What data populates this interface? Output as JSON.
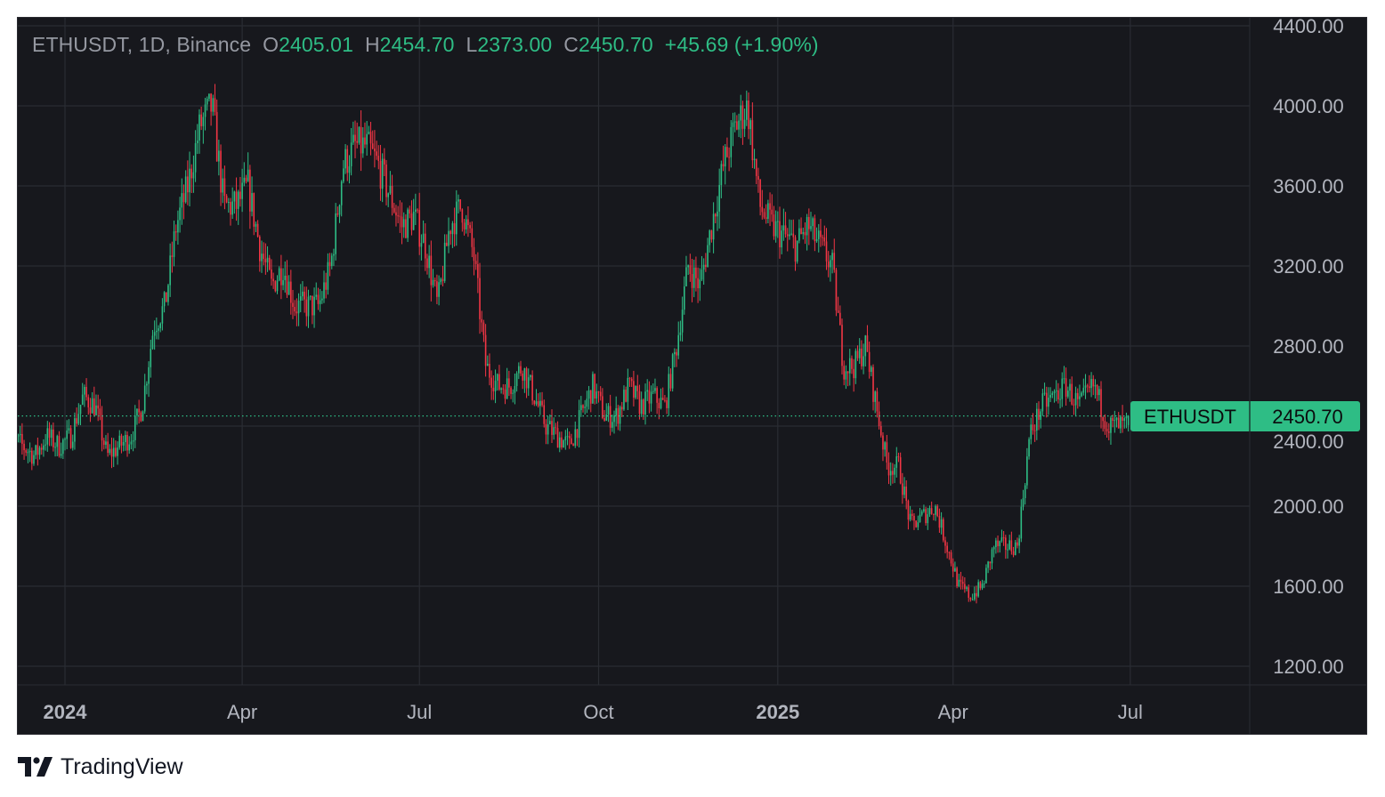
{
  "legend": {
    "symbol_info": "ETHUSDT, 1D, Binance",
    "open_label": "O",
    "open": "2405.01",
    "high_label": "H",
    "high": "2454.70",
    "low_label": "L",
    "low": "2373.00",
    "close_label": "C",
    "close": "2450.70",
    "change": "+45.69",
    "change_pct": "(+1.90%)"
  },
  "price_label": {
    "symbol": "ETHUSDT",
    "price": "2450.70"
  },
  "brand": {
    "name": "TradingView"
  },
  "colors": {
    "background": "#17181d",
    "up": "#2ebd85",
    "down": "#f23645",
    "grid": "#2a2c33",
    "axis_text": "#b2b5be"
  },
  "chart_data": {
    "type": "candlestick",
    "symbol": "ETHUSDT",
    "interval": "1D",
    "exchange": "Binance",
    "ylim": [
      1200,
      4400
    ],
    "y_ticks": [
      "1200.00",
      "1600.00",
      "2000.00",
      "2400.00",
      "2800.00",
      "3200.00",
      "3600.00",
      "4000.00",
      "4400.00"
    ],
    "x_ticks": [
      {
        "date": "2024-01-01",
        "label": "2024",
        "bold": true
      },
      {
        "date": "2024-04-01",
        "label": "Apr",
        "bold": false
      },
      {
        "date": "2024-07-01",
        "label": "Jul",
        "bold": false
      },
      {
        "date": "2024-10-01",
        "label": "Oct",
        "bold": false
      },
      {
        "date": "2025-01-01",
        "label": "2025",
        "bold": true
      },
      {
        "date": "2025-04-01",
        "label": "Apr",
        "bold": false
      },
      {
        "date": "2025-07-01",
        "label": "Jul",
        "bold": false
      }
    ],
    "grid": true,
    "approx_closes_by_month": {
      "2023-12": [
        2350,
        2300,
        2250,
        2350,
        2300
      ],
      "2024-01": [
        2350,
        2550,
        2500,
        2250,
        2300
      ],
      "2024-02": [
        2350,
        2500,
        2900,
        3000,
        3400
      ],
      "2024-03": [
        3600,
        3900,
        4000,
        3500,
        3500
      ],
      "2024-04": [
        3600,
        3300,
        3100,
        3200,
        3000
      ],
      "2024-05": [
        3000,
        3000,
        3200,
        3700,
        3800
      ],
      "2024-06": [
        3800,
        3700,
        3550,
        3400,
        3450
      ],
      "2024-07": [
        3300,
        3000,
        3400,
        3500,
        3250
      ],
      "2024-08": [
        2700,
        2600,
        2600,
        2700,
        2550
      ],
      "2024-09": [
        2400,
        2350,
        2300,
        2450,
        2600
      ],
      "2024-10": [
        2450,
        2450,
        2600,
        2500,
        2550
      ],
      "2024-11": [
        2500,
        2800,
        3200,
        3100,
        3400
      ],
      "2024-12": [
        3700,
        3900,
        4000,
        3500,
        3400
      ],
      "2025-01": [
        3350,
        3300,
        3400,
        3300,
        3200
      ],
      "2025-02": [
        2700,
        2700,
        2800,
        2500,
        2200
      ],
      "2025-03": [
        2200,
        1900,
        1950,
        2000,
        1800
      ],
      "2025-04": [
        1600,
        1550,
        1600,
        1800,
        1800
      ],
      "2025-05": [
        1800,
        2350,
        2500,
        2550,
        2600
      ],
      "2025-06": [
        2500,
        2600,
        2400,
        2400
      ]
    },
    "last_candle": {
      "date": "2025-06-30",
      "open": 2405.01,
      "high": 2454.7,
      "low": 2373.0,
      "close": 2450.7
    },
    "last_price_line": 2450.7
  }
}
